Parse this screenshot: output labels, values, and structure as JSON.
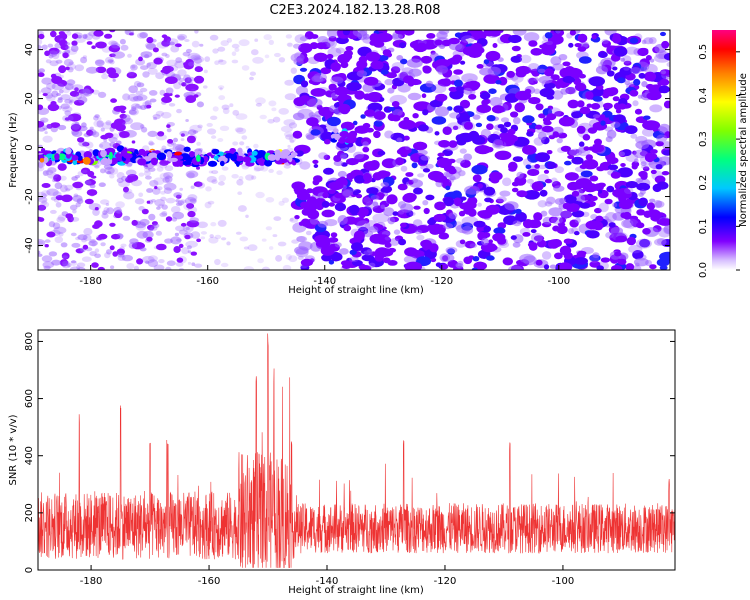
{
  "title": "C2E3.2024.182.13.28.R08",
  "chart_data": [
    {
      "type": "heatmap",
      "xlabel": "Height of straight line (km)",
      "ylabel": "Frequency (Hz)",
      "xlim": [
        -189,
        -81
      ],
      "ylim": [
        -50,
        48
      ],
      "x_ticks": [
        -180,
        -160,
        -140,
        -120,
        -100
      ],
      "y_ticks": [
        -40,
        -20,
        0,
        20,
        40
      ],
      "colorbar": {
        "label": "Normalized spectral amplitude",
        "range": [
          0,
          0.55
        ],
        "ticks": [
          0.0,
          0.1,
          0.2,
          0.3,
          0.4,
          0.5
        ],
        "colormap": [
          "#ffffff",
          "#c8a0ff",
          "#8000ff",
          "#0000ff",
          "#00c8ff",
          "#00ff80",
          "#80ff00",
          "#ffff00",
          "#ff8000",
          "#ff0000",
          "#ff0080"
        ]
      },
      "features": [
        {
          "x_range": [
            -189,
            -145
          ],
          "y_center": -4,
          "value_range": [
            0.15,
            0.5
          ]
        },
        {
          "x_range": [
            -140,
            -134
          ],
          "y_center": 5,
          "value_range": [
            0.15,
            0.25
          ]
        },
        {
          "x_range": [
            -160,
            -145
          ],
          "y_range": [
            -50,
            48
          ],
          "value_range": [
            0.0,
            0.02
          ]
        }
      ]
    },
    {
      "type": "line",
      "xlabel": "Height of straight line (km)",
      "ylabel": "SNR (10 * v/v)",
      "xlim": [
        -189,
        -81
      ],
      "ylim": [
        0,
        840
      ],
      "x_ticks": [
        -180,
        -160,
        -140,
        -120,
        -100
      ],
      "y_ticks": [
        0,
        200,
        400,
        600,
        800
      ],
      "color": "#ee3333",
      "baseline": 120,
      "noise_amplitude": 110,
      "peaks": [
        {
          "x": -182,
          "y": 560
        },
        {
          "x": -175,
          "y": 610
        },
        {
          "x": -170,
          "y": 470
        },
        {
          "x": -167,
          "y": 450
        },
        {
          "x": -150,
          "y": 840
        },
        {
          "x": -149,
          "y": 720
        },
        {
          "x": -152,
          "y": 680
        },
        {
          "x": -146,
          "y": 450
        },
        {
          "x": -127,
          "y": 470
        },
        {
          "x": -109,
          "y": 450
        },
        {
          "x": -82,
          "y": 330
        }
      ]
    }
  ]
}
